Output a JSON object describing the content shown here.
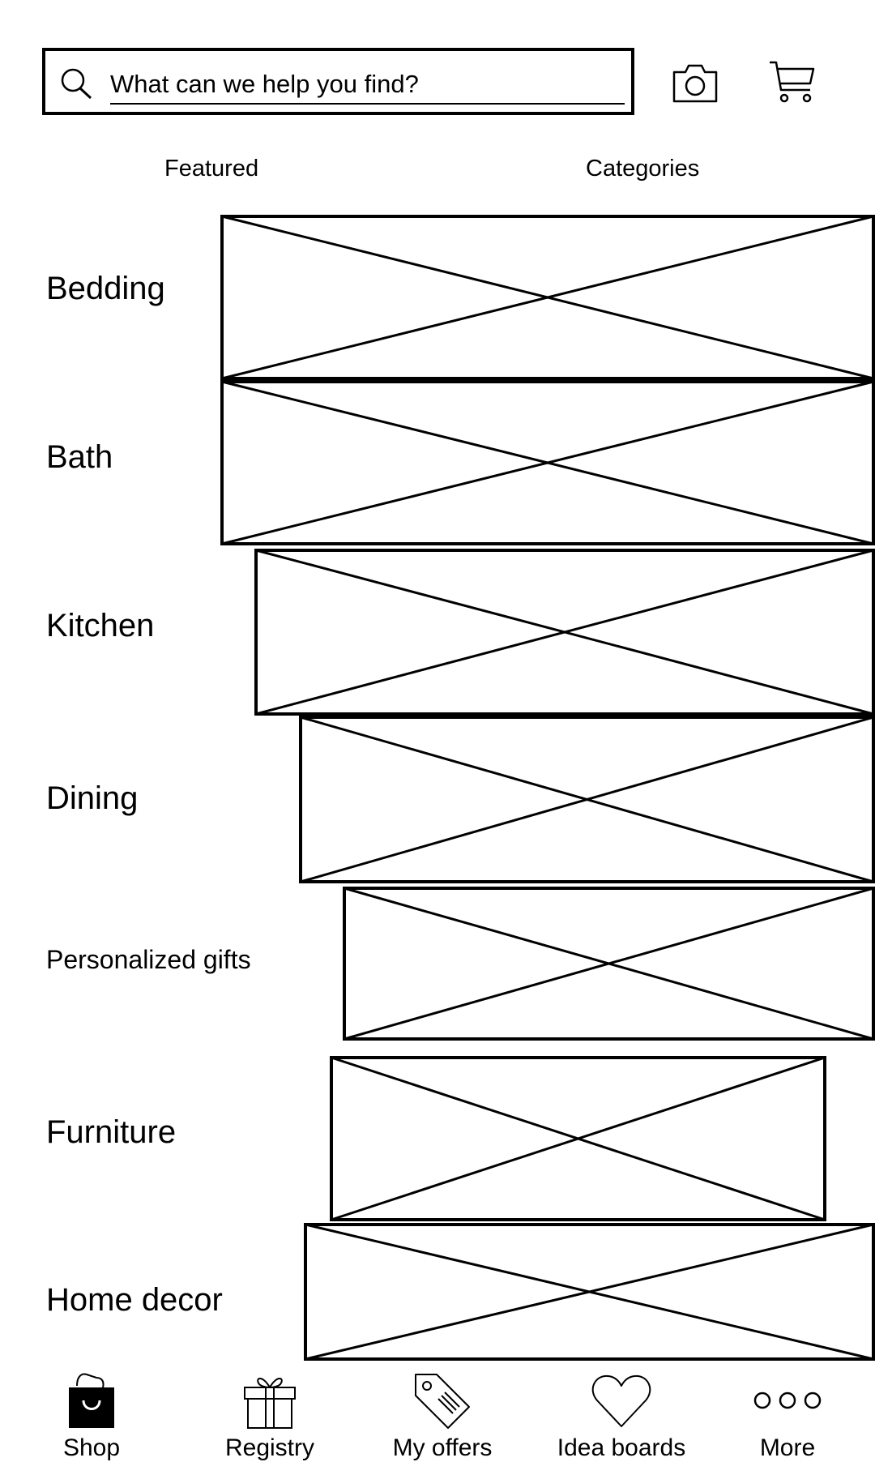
{
  "search": {
    "placeholder": "What can we help you find?"
  },
  "header": {
    "camera_icon": "camera-icon",
    "cart_icon": "shopping-cart-icon"
  },
  "tabs": [
    {
      "label": "Featured"
    },
    {
      "label": "Categories"
    }
  ],
  "categories": [
    {
      "label": "Bedding"
    },
    {
      "label": "Bath"
    },
    {
      "label": "Kitchen"
    },
    {
      "label": "Dining"
    },
    {
      "label": "Personalized gifts"
    },
    {
      "label": "Furniture"
    },
    {
      "label": "Home decor"
    }
  ],
  "bottom_nav": [
    {
      "label": "Shop",
      "icon": "shopping-bag-icon",
      "active": true
    },
    {
      "label": "Registry",
      "icon": "gift-icon"
    },
    {
      "label": "My offers",
      "icon": "tag-icon"
    },
    {
      "label": "Idea boards",
      "icon": "heart-icon"
    },
    {
      "label": "More",
      "icon": "more-dots-icon"
    }
  ]
}
